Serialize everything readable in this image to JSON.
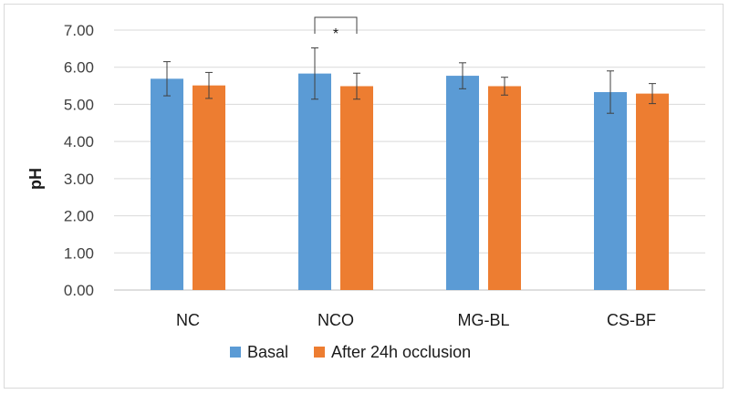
{
  "chart_data": {
    "type": "bar",
    "title": "",
    "xlabel": "",
    "ylabel": "pH",
    "ylim": [
      0,
      7
    ],
    "yticks": [
      "0.00",
      "1.00",
      "2.00",
      "3.00",
      "4.00",
      "5.00",
      "6.00",
      "7.00"
    ],
    "categories": [
      "NC",
      "NCO",
      "MG-BL",
      "CS-BF"
    ],
    "series": [
      {
        "name": "Basal",
        "color": "#5b9bd5",
        "values": [
          5.69,
          5.83,
          5.77,
          5.33
        ],
        "error": [
          0.46,
          0.69,
          0.35,
          0.57
        ]
      },
      {
        "name": "After 24h occlusion",
        "color": "#ed7d31",
        "values": [
          5.51,
          5.49,
          5.49,
          5.29
        ],
        "error": [
          0.35,
          0.35,
          0.24,
          0.27
        ]
      }
    ],
    "grid": true,
    "legend": "bottom",
    "annotation": {
      "text": "*",
      "category": "NCO"
    }
  }
}
